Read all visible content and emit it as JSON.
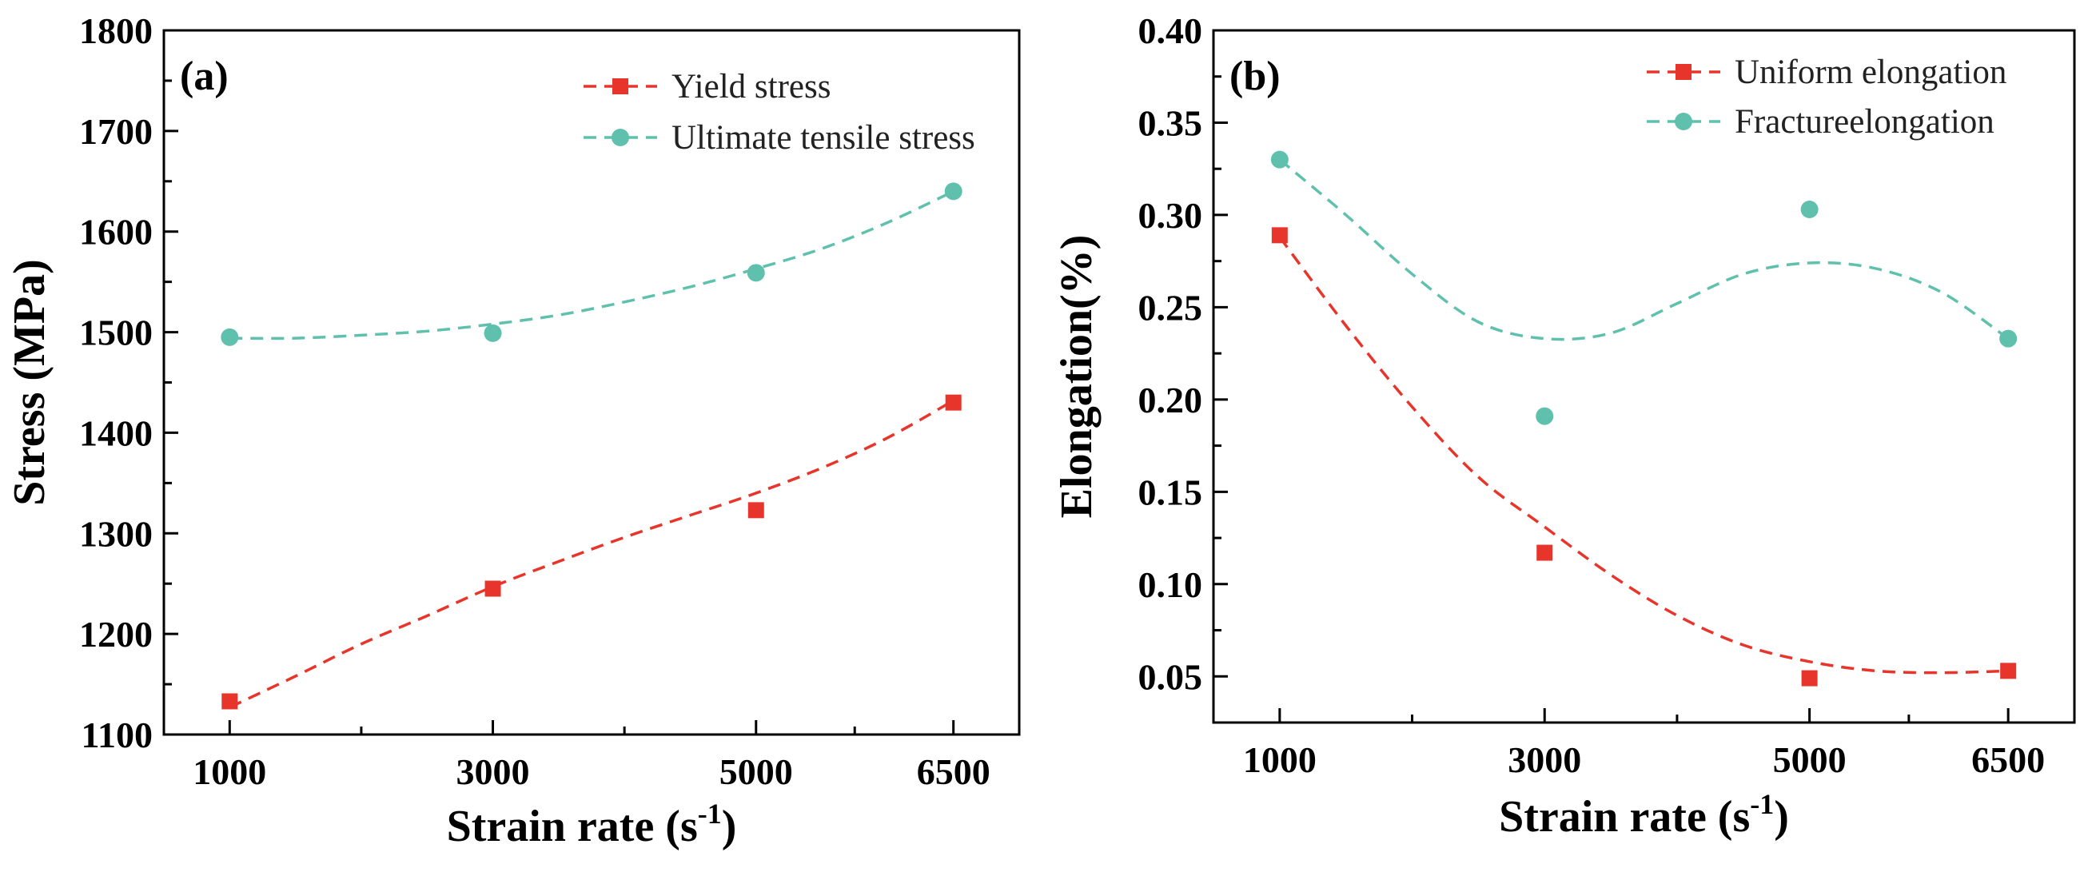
{
  "chart_data": [
    {
      "type": "line",
      "panel_label": "(a)",
      "xlabel": "Strain rate  (s",
      "xlabel_sup": "-1",
      "xlabel_suffix": ")",
      "ylabel": "Stress (MPa)",
      "x": [
        1000,
        3000,
        5000,
        6500
      ],
      "xticks": [
        "1000",
        "3000",
        "5000",
        "6500"
      ],
      "xlim": [
        500,
        7000
      ],
      "ylim": [
        1100,
        1800
      ],
      "yticks": [
        "1100",
        "1200",
        "1300",
        "1400",
        "1500",
        "1600",
        "1700",
        "1800"
      ],
      "legend_position": "top-right",
      "series": [
        {
          "name": "Yield stress",
          "marker": "square",
          "color": "#e8352b",
          "values": [
            1133,
            1245,
            1323,
            1430
          ],
          "fit": [
            [
              1000,
              1127
            ],
            [
              1500,
              1158
            ],
            [
              2000,
              1190
            ],
            [
              2500,
              1218
            ],
            [
              3000,
              1247
            ],
            [
              3500,
              1272
            ],
            [
              4000,
              1296
            ],
            [
              4500,
              1318
            ],
            [
              5000,
              1340
            ],
            [
              5500,
              1365
            ],
            [
              6000,
              1395
            ],
            [
              6500,
              1432
            ]
          ]
        },
        {
          "name": "Ultimate tensile stress",
          "marker": "circle",
          "color": "#5fc1ad",
          "values": [
            1495,
            1499,
            1559,
            1640
          ],
          "fit": [
            [
              1000,
              1494
            ],
            [
              1500,
              1494
            ],
            [
              2000,
              1497
            ],
            [
              2500,
              1501
            ],
            [
              3000,
              1508
            ],
            [
              3500,
              1517
            ],
            [
              4000,
              1530
            ],
            [
              4500,
              1545
            ],
            [
              5000,
              1563
            ],
            [
              5500,
              1583
            ],
            [
              6000,
              1609
            ],
            [
              6500,
              1640
            ]
          ]
        }
      ]
    },
    {
      "type": "line",
      "panel_label": "(b)",
      "xlabel": "Strain rate  (s",
      "xlabel_sup": "-1",
      "xlabel_suffix": ")",
      "ylabel": "Elongation(%)",
      "x": [
        1000,
        3000,
        5000,
        6500
      ],
      "xticks": [
        "1000",
        "3000",
        "5000",
        "6500"
      ],
      "xlim": [
        500,
        7000
      ],
      "ylim": [
        0.025,
        0.4
      ],
      "yticks": [
        "0.05",
        "0.10",
        "0.15",
        "0.20",
        "0.25",
        "0.30",
        "0.35",
        "0.40"
      ],
      "legend_position": "top-right",
      "series": [
        {
          "name": "Uniform elongation",
          "marker": "square",
          "color": "#e8352b",
          "values": [
            0.289,
            0.117,
            0.049,
            0.053
          ],
          "fit": [
            [
              1000,
              0.288
            ],
            [
              1500,
              0.24
            ],
            [
              2000,
              0.196
            ],
            [
              2500,
              0.158
            ],
            [
              3000,
              0.131
            ],
            [
              3500,
              0.105
            ],
            [
              4000,
              0.083
            ],
            [
              4500,
              0.067
            ],
            [
              5000,
              0.058
            ],
            [
              5500,
              0.053
            ],
            [
              6000,
              0.052
            ],
            [
              6500,
              0.053
            ]
          ]
        },
        {
          "name": "Fractureelongation",
          "marker": "circle",
          "color": "#5fc1ad",
          "values": [
            0.33,
            0.191,
            0.303,
            0.233
          ],
          "fit": [
            [
              1000,
              0.33
            ],
            [
              1500,
              0.3
            ],
            [
              2000,
              0.268
            ],
            [
              2500,
              0.242
            ],
            [
              3000,
              0.233
            ],
            [
              3500,
              0.236
            ],
            [
              4000,
              0.252
            ],
            [
              4500,
              0.268
            ],
            [
              5000,
              0.274
            ],
            [
              5500,
              0.271
            ],
            [
              6000,
              0.258
            ],
            [
              6500,
              0.233
            ]
          ]
        }
      ]
    }
  ]
}
